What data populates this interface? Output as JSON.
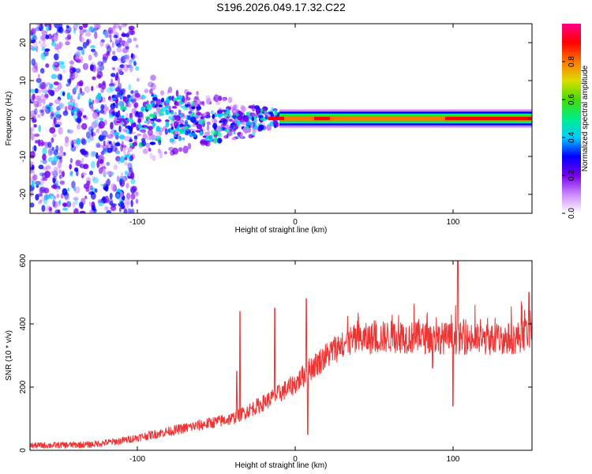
{
  "title": "S196.2026.049.17.32.C22",
  "colors": {
    "snr_line": "#ee3333",
    "frame": "#000000",
    "colorbar_stops": [
      "#ffffff",
      "#cc88ff",
      "#7700ee",
      "#0000ff",
      "#00ccff",
      "#00ee88",
      "#44dd00",
      "#dddd00",
      "#ff7700",
      "#ff0000",
      "#ff0088"
    ]
  },
  "chart_data": [
    {
      "type": "heatmap",
      "name": "spectrogram",
      "xlabel": "Height of straight line (km)",
      "ylabel": "Frequency (Hz)",
      "xlim": [
        -168,
        150
      ],
      "ylim": [
        -25,
        25
      ],
      "xticks": [
        -100,
        0,
        100
      ],
      "yticks": [
        -20,
        -10,
        0,
        10,
        20
      ],
      "xtick_labels": [
        "-100",
        "0",
        "100"
      ],
      "ytick_labels": [
        "-20",
        "-10",
        "0",
        "10",
        "20"
      ],
      "colorbar": {
        "label": "Normalized spectral amplitude",
        "range": [
          0,
          1
        ],
        "ticks": [
          0.0,
          0.2,
          0.4,
          0.6,
          0.8
        ],
        "tick_labels": [
          "0.0",
          "0.2",
          "0.4",
          "0.6",
          "0.8"
        ]
      },
      "band": {
        "center_hz": 0,
        "visible_from_km": -115,
        "dense_noise_until_km": -100,
        "jump_km": -10,
        "high_amplitude_segments": [
          [
            -17,
            -7
          ],
          [
            12,
            22
          ],
          [
            95,
            150
          ]
        ]
      }
    },
    {
      "type": "line",
      "name": "snr",
      "xlabel": "Height of straight line (km)",
      "ylabel": "SNR (10 * v/v)",
      "xlim": [
        -168,
        150
      ],
      "ylim": [
        0,
        600
      ],
      "xticks": [
        -100,
        0,
        100
      ],
      "yticks": [
        0,
        200,
        400,
        600
      ],
      "xtick_labels": [
        "-100",
        "0",
        "100"
      ],
      "ytick_labels": [
        "0",
        "200",
        "400",
        "600"
      ],
      "trend_x": [
        -168,
        -130,
        -110,
        -95,
        -80,
        -60,
        -40,
        -20,
        0,
        10,
        20,
        30,
        40,
        60,
        80,
        100,
        120,
        140,
        150
      ],
      "trend_y": [
        15,
        18,
        30,
        45,
        60,
        80,
        100,
        150,
        210,
        260,
        300,
        340,
        350,
        360,
        355,
        355,
        350,
        355,
        380
      ],
      "spikes": [
        {
          "x": -35,
          "y": 440
        },
        {
          "x": -37,
          "y": 250
        },
        {
          "x": -13,
          "y": 450
        },
        {
          "x": 7,
          "y": 480
        },
        {
          "x": 8,
          "y": 50
        },
        {
          "x": 87,
          "y": 260
        },
        {
          "x": 100,
          "y": 140
        },
        {
          "x": 103,
          "y": 600
        },
        {
          "x": 148,
          "y": 500
        }
      ]
    }
  ]
}
